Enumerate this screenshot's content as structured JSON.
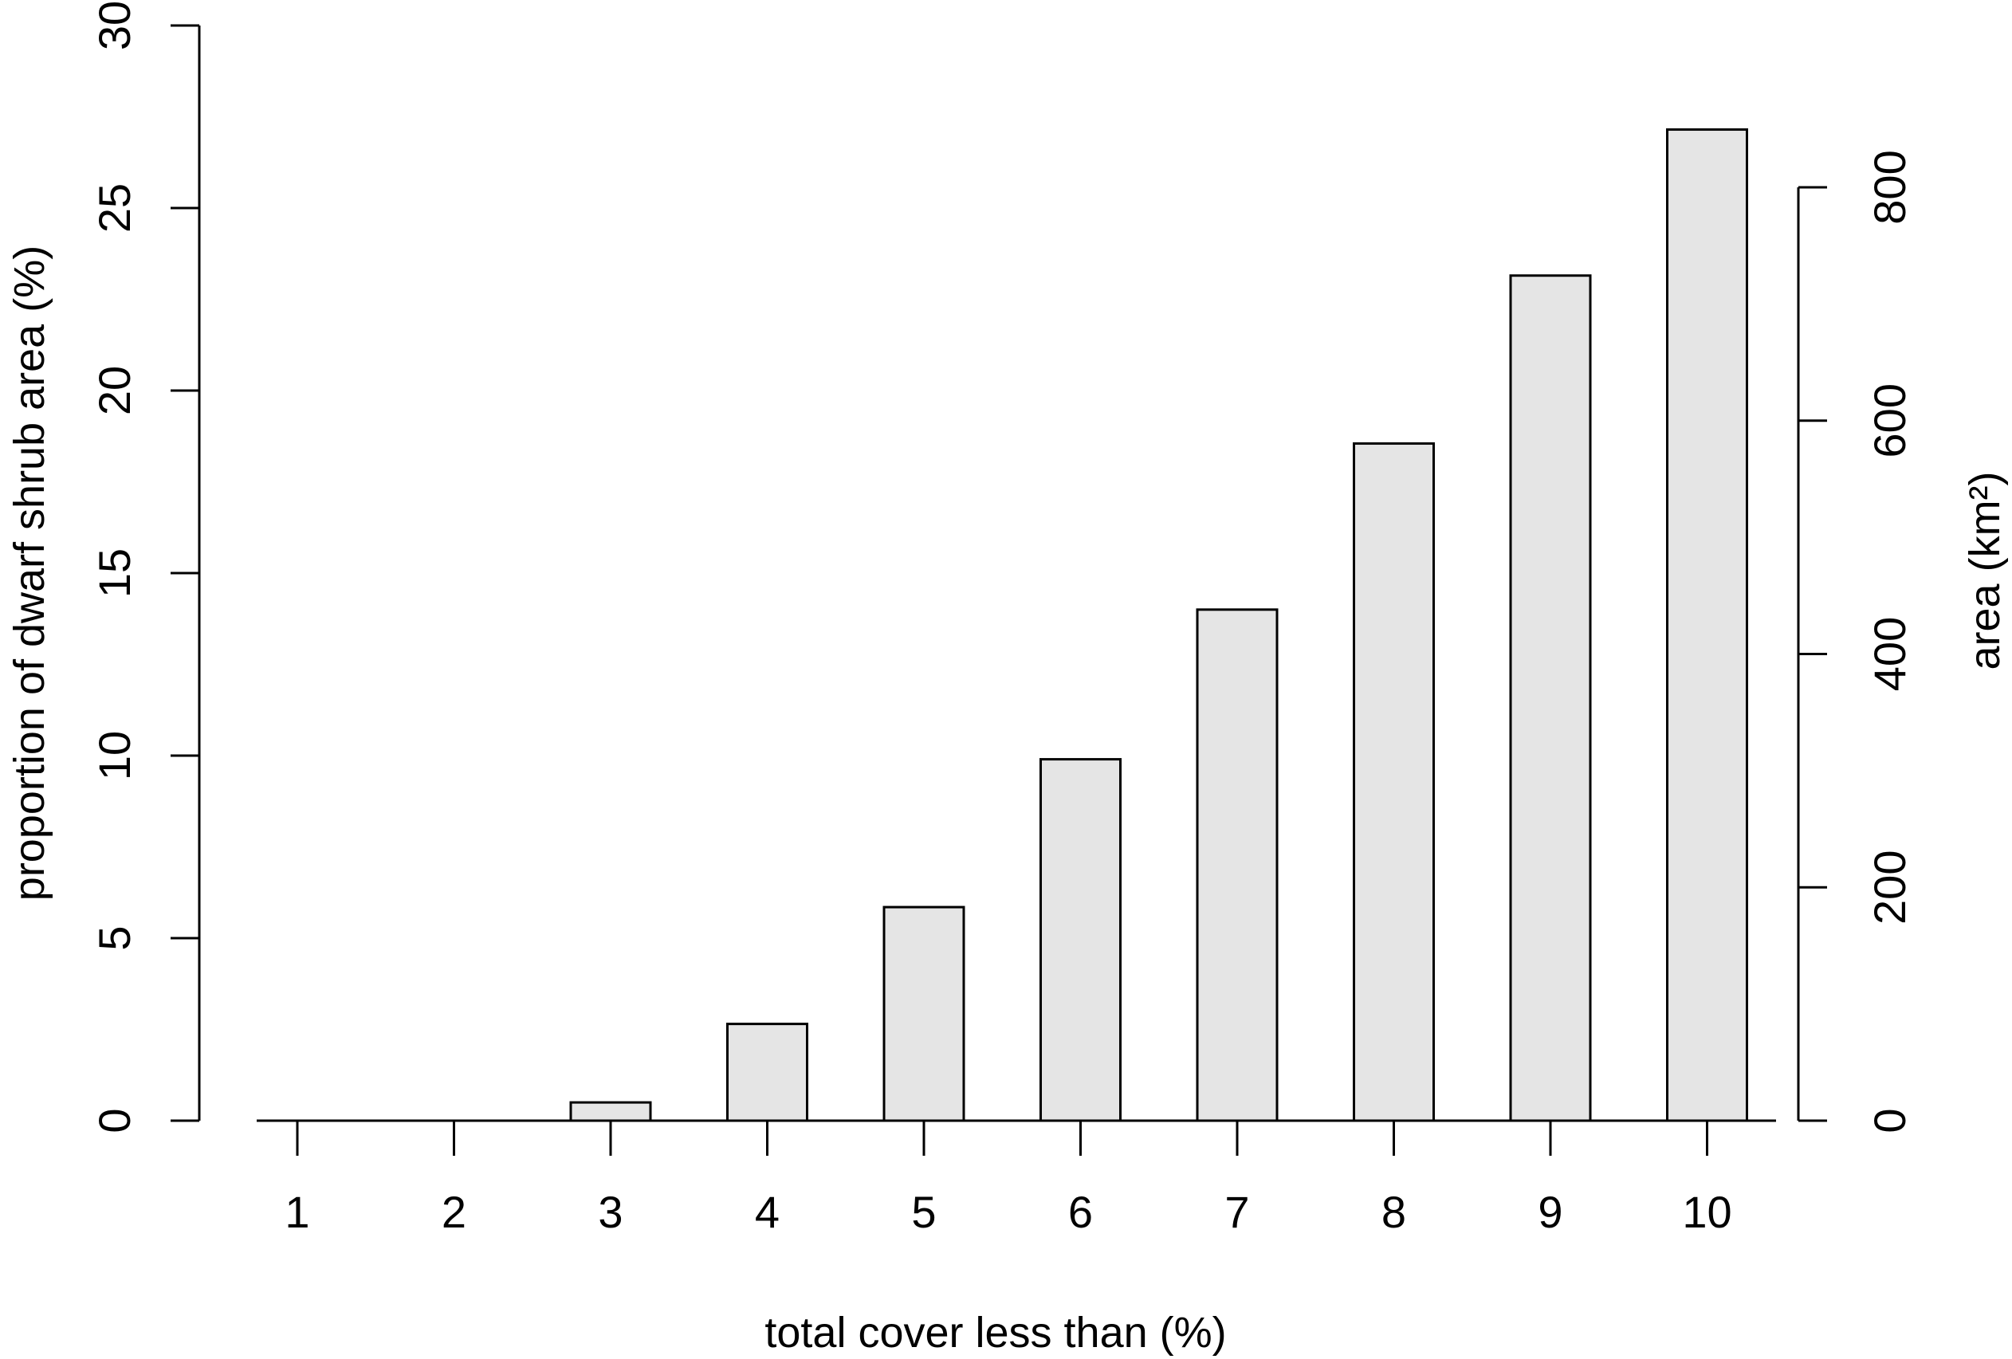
{
  "chart_data": {
    "type": "bar",
    "xlabel": "total cover less than (%)",
    "ylabel": "proportion of dwarf shrub area (%)",
    "y2label": "area (km²)",
    "categories": [
      "1",
      "2",
      "3",
      "4",
      "5",
      "6",
      "7",
      "8",
      "9",
      "10"
    ],
    "values": [
      0,
      0,
      0.5,
      2.65,
      5.85,
      9.9,
      14.0,
      18.55,
      23.15,
      27.15
    ],
    "ylim": [
      0,
      30
    ],
    "yticks": [
      "0",
      "5",
      "10",
      "15",
      "20",
      "25",
      "30"
    ],
    "y2lim": [
      0,
      800
    ],
    "y2ticks": [
      "0",
      "200",
      "400",
      "600",
      "800"
    ],
    "grid": false,
    "colors": {
      "bar_fill": "#e5e5e5",
      "stroke": "#000000"
    }
  }
}
